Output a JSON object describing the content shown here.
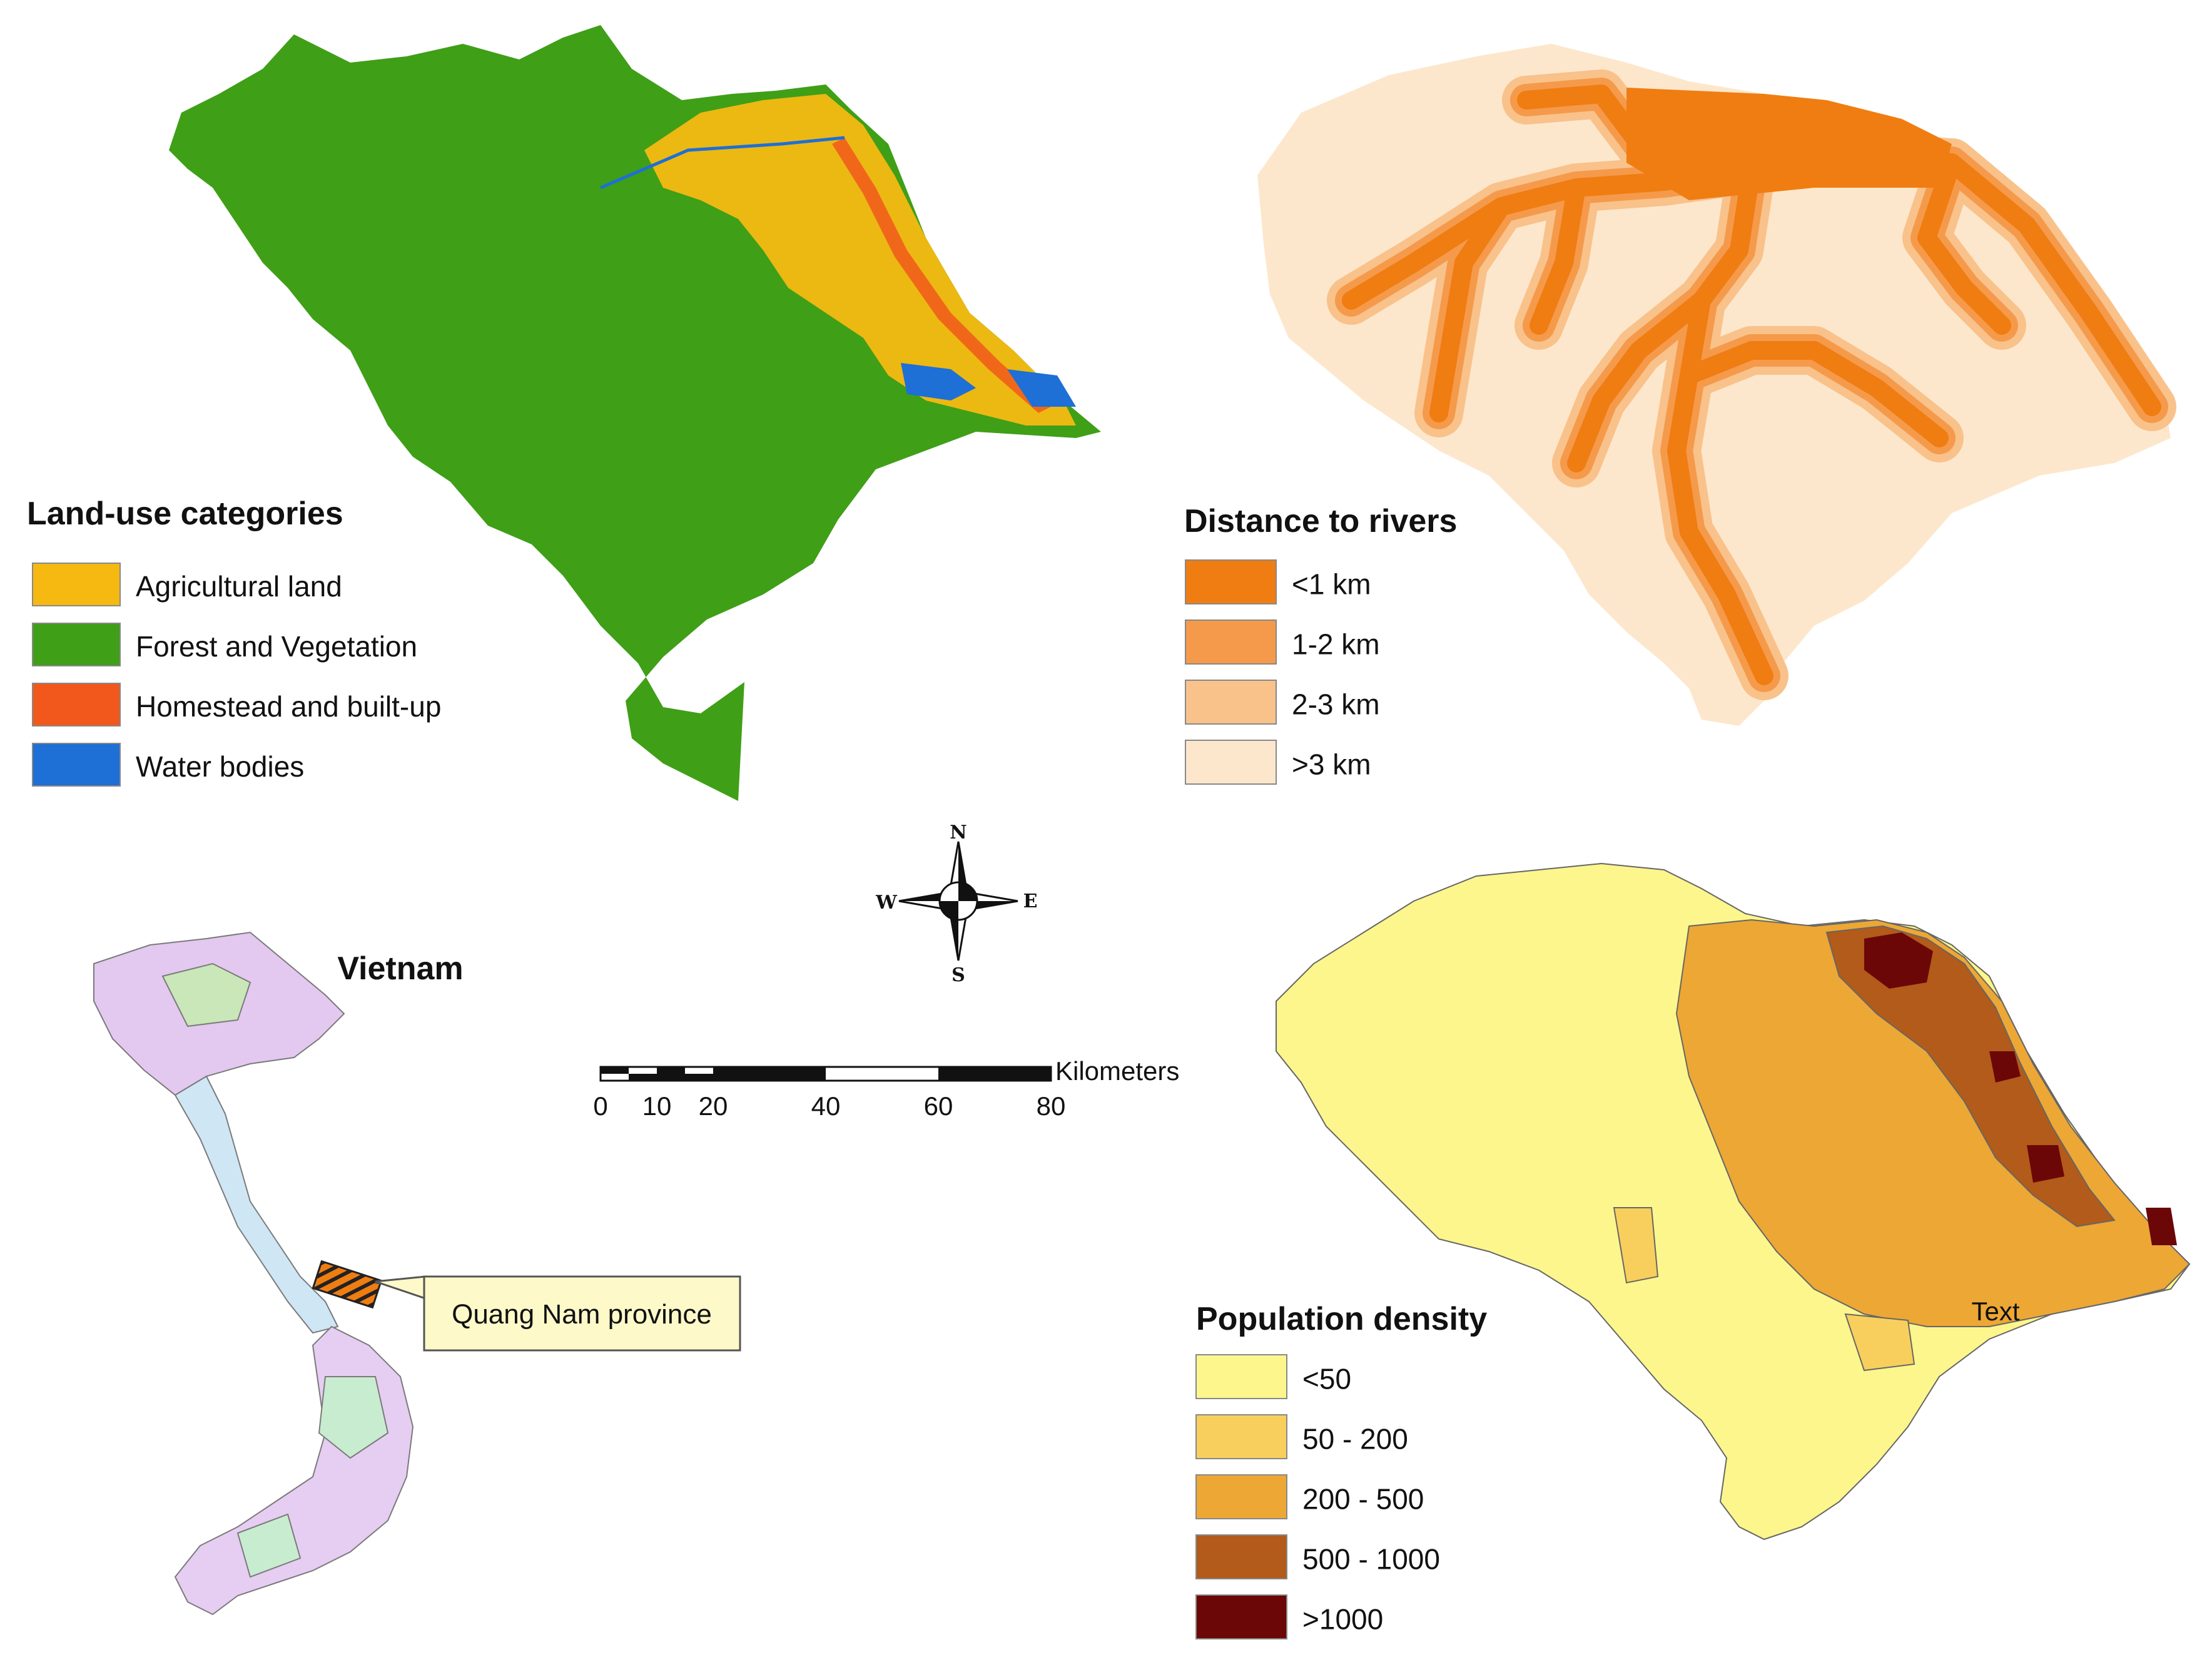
{
  "landuse": {
    "title": "Land-use categories",
    "items": [
      {
        "label": "Agricultural land",
        "color": "#f6b912"
      },
      {
        "label": "Forest and Vegetation",
        "color": "#3f9f17"
      },
      {
        "label": "Homestead and built-up",
        "color": "#f2581c"
      },
      {
        "label": "Water bodies",
        "color": "#1e6fd6"
      }
    ]
  },
  "rivers": {
    "title": "Distance to rivers",
    "items": [
      {
        "label": "<1 km",
        "color": "#f07d12"
      },
      {
        "label": "1-2 km",
        "color": "#f59a4b"
      },
      {
        "label": "2-3 km",
        "color": "#f9c28b"
      },
      {
        "label": ">3 km",
        "color": "#fde7cc"
      }
    ]
  },
  "population": {
    "title": "Population density",
    "annotation": "Text",
    "items": [
      {
        "label": "<50",
        "color": "#fcf68c"
      },
      {
        "label": "50 - 200",
        "color": "#f8cf5d"
      },
      {
        "label": "200 - 500",
        "color": "#eda735"
      },
      {
        "label": "500 - 1000",
        "color": "#b25b1a"
      },
      {
        "label": ">1000",
        "color": "#6b0707"
      }
    ]
  },
  "vietnam": {
    "title": "Vietnam",
    "callout": "Quang Nam province"
  },
  "compass": {
    "north": "N",
    "south": "S",
    "east": "E",
    "west": "W"
  },
  "scalebar": {
    "unit": "Kilometers",
    "ticks": [
      "0",
      "10",
      "20",
      "40",
      "60",
      "80"
    ]
  }
}
